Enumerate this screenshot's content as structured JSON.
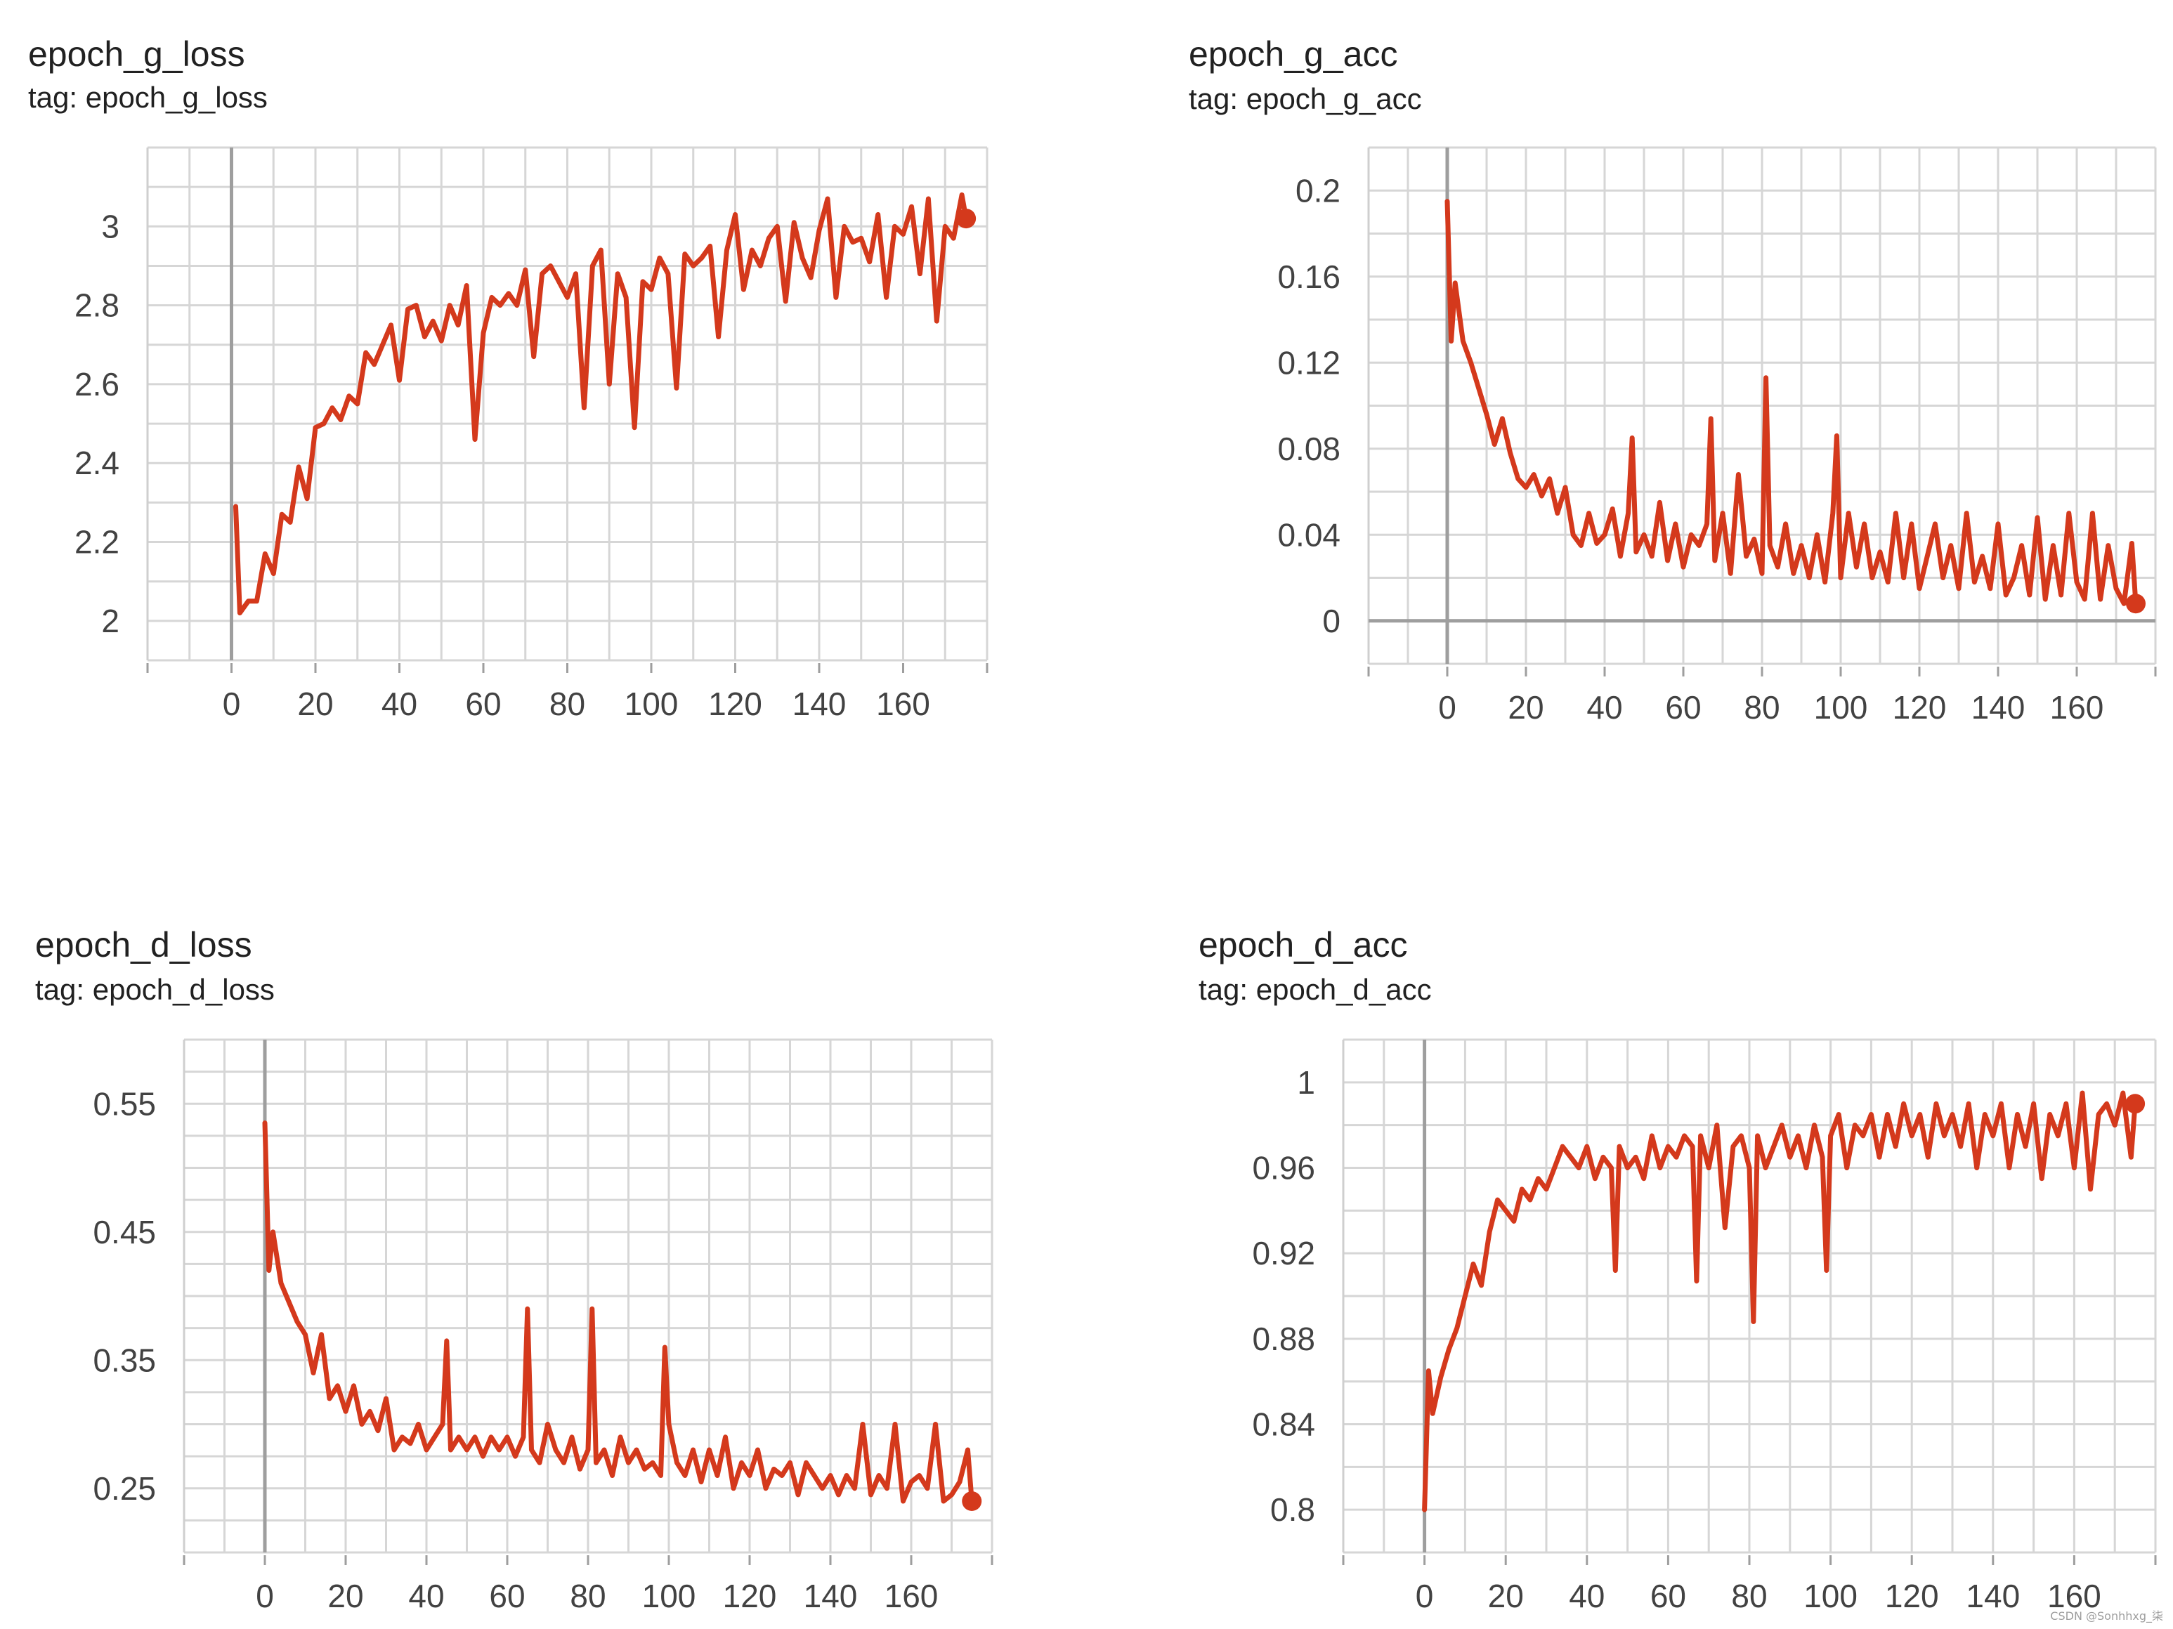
{
  "watermark": "CSDN @Sonhhxg_柒",
  "series_color": "#d4391c",
  "chart_data": [
    {
      "type": "line",
      "title": "epoch_g_loss",
      "subtitle": "tag: epoch_g_loss",
      "xlim": [
        -20,
        180
      ],
      "ylim": [
        1.9,
        3.2
      ],
      "xticks": [
        0,
        20,
        40,
        60,
        80,
        100,
        120,
        140,
        160
      ],
      "yticks": [
        2,
        2.2,
        2.4,
        2.6,
        2.8,
        3
      ],
      "ytick_labels": [
        "2",
        "2.2",
        "2.4",
        "2.6",
        "2.8",
        "3"
      ],
      "grid": true,
      "x_zero_axis": true,
      "y_zero_axis": false,
      "end_marker": true,
      "x": [
        1,
        2,
        4,
        6,
        8,
        10,
        12,
        14,
        16,
        18,
        20,
        22,
        24,
        26,
        28,
        30,
        32,
        34,
        36,
        38,
        40,
        42,
        44,
        46,
        48,
        50,
        52,
        54,
        56,
        58,
        60,
        62,
        64,
        66,
        68,
        70,
        72,
        74,
        76,
        78,
        80,
        82,
        84,
        86,
        88,
        90,
        92,
        94,
        96,
        98,
        100,
        102,
        104,
        106,
        108,
        110,
        112,
        114,
        116,
        118,
        120,
        122,
        124,
        126,
        128,
        130,
        132,
        134,
        136,
        138,
        140,
        142,
        144,
        146,
        148,
        150,
        152,
        154,
        156,
        158,
        160,
        162,
        164,
        166,
        168,
        170,
        172,
        174,
        175
      ],
      "y": [
        2.29,
        2.02,
        2.05,
        2.05,
        2.17,
        2.12,
        2.27,
        2.25,
        2.39,
        2.31,
        2.49,
        2.5,
        2.54,
        2.51,
        2.57,
        2.55,
        2.68,
        2.65,
        2.7,
        2.75,
        2.61,
        2.79,
        2.8,
        2.72,
        2.76,
        2.71,
        2.8,
        2.75,
        2.85,
        2.46,
        2.73,
        2.82,
        2.8,
        2.83,
        2.8,
        2.89,
        2.67,
        2.88,
        2.9,
        2.86,
        2.82,
        2.88,
        2.54,
        2.9,
        2.94,
        2.6,
        2.88,
        2.82,
        2.49,
        2.86,
        2.84,
        2.92,
        2.88,
        2.59,
        2.93,
        2.9,
        2.92,
        2.95,
        2.72,
        2.94,
        3.03,
        2.84,
        2.94,
        2.9,
        2.97,
        3.0,
        2.81,
        3.01,
        2.92,
        2.87,
        2.99,
        3.07,
        2.82,
        3.0,
        2.96,
        2.97,
        2.91,
        3.03,
        2.82,
        3.0,
        2.98,
        3.05,
        2.88,
        3.07,
        2.76,
        3.0,
        2.97,
        3.08,
        3.02
      ]
    },
    {
      "type": "line",
      "title": "epoch_g_acc",
      "subtitle": "tag: epoch_g_acc",
      "xlim": [
        -20,
        180
      ],
      "ylim": [
        -0.02,
        0.22
      ],
      "xticks": [
        0,
        20,
        40,
        60,
        80,
        100,
        120,
        140,
        160
      ],
      "yticks": [
        0,
        0.04,
        0.08,
        0.12,
        0.16,
        0.2
      ],
      "ytick_labels": [
        "0",
        "0.04",
        "0.08",
        "0.12",
        "0.16",
        "0.2"
      ],
      "grid": true,
      "x_zero_axis": true,
      "y_zero_axis": true,
      "end_marker": true,
      "x": [
        0,
        1,
        2,
        4,
        6,
        8,
        10,
        12,
        14,
        16,
        18,
        20,
        22,
        24,
        26,
        28,
        30,
        32,
        34,
        36,
        38,
        40,
        42,
        44,
        46,
        47,
        48,
        50,
        52,
        54,
        56,
        58,
        60,
        62,
        64,
        66,
        67,
        68,
        70,
        72,
        74,
        76,
        78,
        80,
        81,
        82,
        84,
        86,
        88,
        90,
        92,
        94,
        96,
        98,
        99,
        100,
        102,
        104,
        106,
        108,
        110,
        112,
        114,
        116,
        118,
        120,
        122,
        124,
        126,
        128,
        130,
        132,
        134,
        136,
        138,
        140,
        142,
        144,
        146,
        148,
        150,
        152,
        154,
        156,
        158,
        160,
        162,
        164,
        166,
        168,
        170,
        172,
        174,
        175
      ],
      "y": [
        0.195,
        0.13,
        0.157,
        0.13,
        0.12,
        0.108,
        0.096,
        0.082,
        0.094,
        0.078,
        0.066,
        0.062,
        0.068,
        0.058,
        0.066,
        0.05,
        0.062,
        0.04,
        0.035,
        0.05,
        0.036,
        0.04,
        0.052,
        0.03,
        0.05,
        0.085,
        0.032,
        0.04,
        0.03,
        0.055,
        0.028,
        0.045,
        0.025,
        0.04,
        0.035,
        0.045,
        0.094,
        0.028,
        0.05,
        0.022,
        0.068,
        0.03,
        0.038,
        0.022,
        0.113,
        0.035,
        0.025,
        0.045,
        0.022,
        0.035,
        0.02,
        0.04,
        0.018,
        0.05,
        0.086,
        0.02,
        0.05,
        0.025,
        0.045,
        0.02,
        0.032,
        0.018,
        0.05,
        0.02,
        0.045,
        0.015,
        0.03,
        0.045,
        0.02,
        0.035,
        0.015,
        0.05,
        0.018,
        0.03,
        0.015,
        0.045,
        0.012,
        0.02,
        0.035,
        0.012,
        0.048,
        0.01,
        0.035,
        0.012,
        0.05,
        0.018,
        0.01,
        0.05,
        0.01,
        0.035,
        0.015,
        0.008,
        0.036,
        0.008
      ]
    },
    {
      "type": "line",
      "title": "epoch_d_loss",
      "subtitle": "tag: epoch_d_loss",
      "xlim": [
        -20,
        180
      ],
      "ylim": [
        0.2,
        0.6
      ],
      "xticks": [
        0,
        20,
        40,
        60,
        80,
        100,
        120,
        140,
        160
      ],
      "yticks": [
        0.25,
        0.3,
        0.35,
        0.4,
        0.45,
        0.5,
        0.55
      ],
      "ytick_labels": [
        "0.25",
        "",
        "0.35",
        "",
        "0.45",
        "",
        "0.55"
      ],
      "grid": true,
      "x_zero_axis": true,
      "y_zero_axis": false,
      "end_marker": true,
      "x": [
        0,
        1,
        2,
        4,
        6,
        8,
        10,
        12,
        14,
        16,
        18,
        20,
        22,
        24,
        26,
        28,
        30,
        32,
        34,
        36,
        38,
        40,
        42,
        44,
        45,
        46,
        48,
        50,
        52,
        54,
        56,
        58,
        60,
        62,
        64,
        65,
        66,
        68,
        70,
        72,
        74,
        76,
        78,
        80,
        81,
        82,
        84,
        86,
        88,
        90,
        92,
        94,
        96,
        98,
        99,
        100,
        102,
        104,
        106,
        108,
        110,
        112,
        114,
        116,
        118,
        120,
        122,
        124,
        126,
        128,
        130,
        132,
        134,
        136,
        138,
        140,
        142,
        144,
        146,
        148,
        150,
        152,
        154,
        156,
        158,
        160,
        162,
        164,
        166,
        168,
        170,
        172,
        174,
        175
      ],
      "y": [
        0.535,
        0.42,
        0.45,
        0.41,
        0.395,
        0.38,
        0.37,
        0.34,
        0.37,
        0.32,
        0.33,
        0.31,
        0.33,
        0.3,
        0.31,
        0.295,
        0.32,
        0.28,
        0.29,
        0.285,
        0.3,
        0.28,
        0.29,
        0.3,
        0.365,
        0.28,
        0.29,
        0.28,
        0.29,
        0.275,
        0.29,
        0.28,
        0.29,
        0.275,
        0.29,
        0.39,
        0.28,
        0.27,
        0.3,
        0.28,
        0.27,
        0.29,
        0.265,
        0.28,
        0.39,
        0.27,
        0.28,
        0.26,
        0.29,
        0.27,
        0.28,
        0.265,
        0.27,
        0.26,
        0.36,
        0.3,
        0.27,
        0.26,
        0.28,
        0.255,
        0.28,
        0.26,
        0.29,
        0.25,
        0.27,
        0.26,
        0.28,
        0.25,
        0.265,
        0.26,
        0.27,
        0.245,
        0.27,
        0.26,
        0.25,
        0.26,
        0.245,
        0.26,
        0.25,
        0.3,
        0.245,
        0.26,
        0.25,
        0.3,
        0.24,
        0.255,
        0.26,
        0.25,
        0.3,
        0.24,
        0.245,
        0.255,
        0.28,
        0.24
      ]
    },
    {
      "type": "line",
      "title": "epoch_d_acc",
      "subtitle": "tag: epoch_d_acc",
      "xlim": [
        -20,
        180
      ],
      "ylim": [
        0.78,
        1.02
      ],
      "xticks": [
        0,
        20,
        40,
        60,
        80,
        100,
        120,
        140,
        160
      ],
      "yticks": [
        0.8,
        0.84,
        0.88,
        0.92,
        0.96,
        1
      ],
      "ytick_labels": [
        "0.8",
        "0.84",
        "0.88",
        "0.92",
        "0.96",
        "1"
      ],
      "grid": true,
      "x_zero_axis": true,
      "y_zero_axis": false,
      "end_marker": true,
      "x": [
        0,
        1,
        2,
        4,
        6,
        8,
        10,
        12,
        14,
        16,
        18,
        20,
        22,
        24,
        26,
        28,
        30,
        32,
        34,
        36,
        38,
        40,
        42,
        44,
        46,
        47,
        48,
        50,
        52,
        54,
        56,
        58,
        60,
        62,
        64,
        66,
        67,
        68,
        70,
        72,
        74,
        76,
        78,
        80,
        81,
        82,
        84,
        86,
        88,
        90,
        92,
        94,
        96,
        98,
        99,
        100,
        102,
        104,
        106,
        108,
        110,
        112,
        114,
        116,
        118,
        120,
        122,
        124,
        126,
        128,
        130,
        132,
        134,
        136,
        138,
        140,
        142,
        144,
        146,
        148,
        150,
        152,
        154,
        156,
        158,
        160,
        162,
        164,
        166,
        168,
        170,
        172,
        174,
        175
      ],
      "y": [
        0.8,
        0.865,
        0.845,
        0.862,
        0.875,
        0.885,
        0.9,
        0.915,
        0.905,
        0.93,
        0.945,
        0.94,
        0.935,
        0.95,
        0.945,
        0.955,
        0.95,
        0.96,
        0.97,
        0.965,
        0.96,
        0.97,
        0.955,
        0.965,
        0.96,
        0.912,
        0.97,
        0.96,
        0.965,
        0.955,
        0.975,
        0.96,
        0.97,
        0.965,
        0.975,
        0.97,
        0.907,
        0.975,
        0.96,
        0.98,
        0.932,
        0.97,
        0.975,
        0.96,
        0.888,
        0.975,
        0.96,
        0.97,
        0.98,
        0.965,
        0.975,
        0.96,
        0.98,
        0.965,
        0.912,
        0.975,
        0.985,
        0.96,
        0.98,
        0.975,
        0.985,
        0.965,
        0.985,
        0.97,
        0.99,
        0.975,
        0.985,
        0.965,
        0.99,
        0.975,
        0.985,
        0.97,
        0.99,
        0.96,
        0.985,
        0.975,
        0.99,
        0.96,
        0.985,
        0.97,
        0.99,
        0.955,
        0.985,
        0.975,
        0.99,
        0.96,
        0.995,
        0.95,
        0.985,
        0.99,
        0.98,
        0.995,
        0.965,
        0.99
      ]
    }
  ]
}
